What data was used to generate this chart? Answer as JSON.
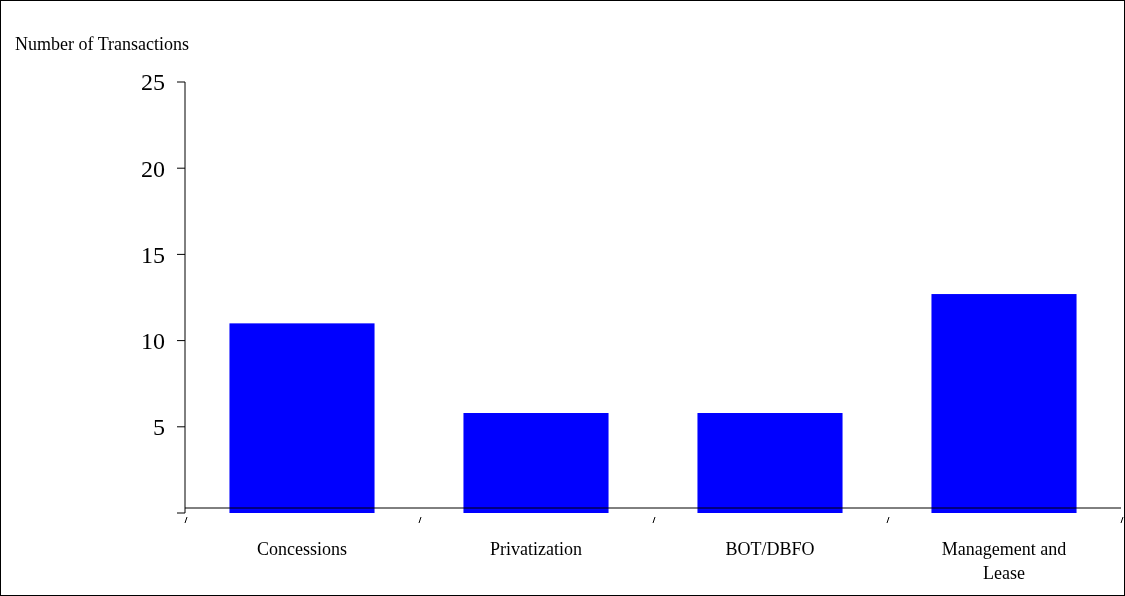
{
  "chart_data": {
    "type": "bar",
    "ylabel": "Number of Transactions",
    "categories": [
      "Concessions",
      "Privatization",
      "BOT/DBFO",
      "Management and Lease"
    ],
    "values": [
      11,
      5.8,
      5.8,
      12.7
    ],
    "color": "#0000ff",
    "ylim": [
      0,
      25
    ],
    "yticks": [
      {
        "value": 0,
        "label": null
      },
      5,
      10,
      15,
      20,
      25
    ],
    "grid": false
  }
}
